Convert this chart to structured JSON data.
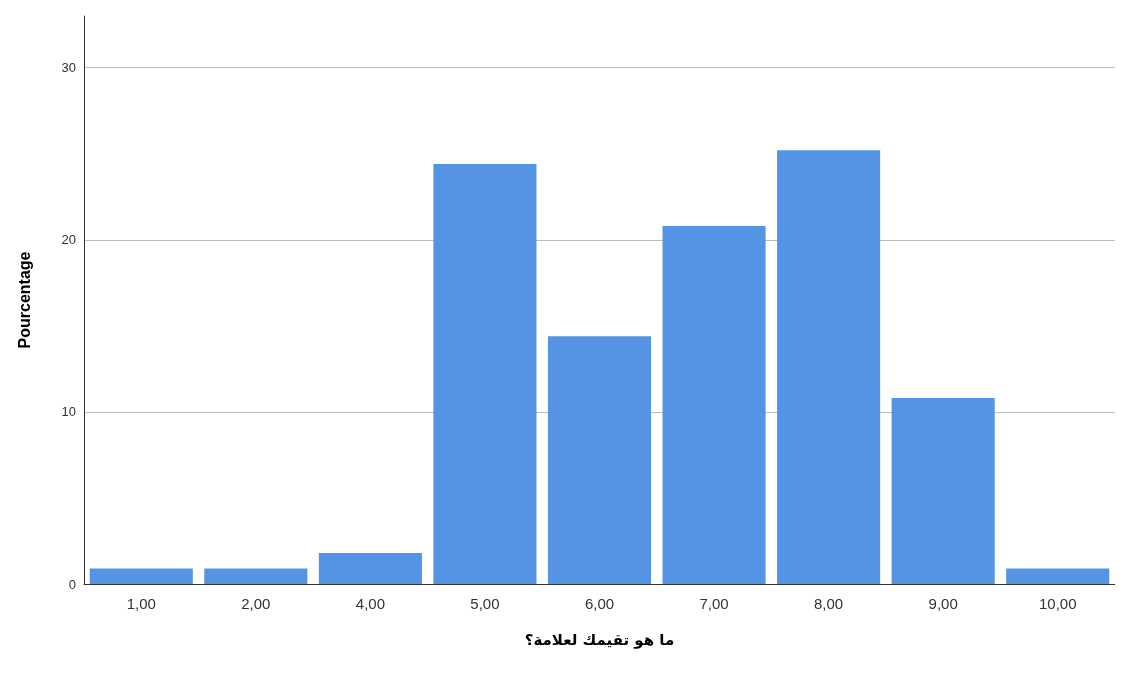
{
  "chart_data": {
    "type": "bar",
    "xlabel": "ما هو تقيمك لعلامة؟",
    "ylabel": "Pourcentage",
    "categories": [
      "1,00",
      "2,00",
      "4,00",
      "5,00",
      "6,00",
      "7,00",
      "8,00",
      "9,00",
      "10,00"
    ],
    "values": [
      0.9,
      0.9,
      1.8,
      24.4,
      14.4,
      20.8,
      25.2,
      10.8,
      0.9
    ],
    "color": "#5594e4",
    "ylim": [
      0,
      33
    ],
    "yticks": [
      0,
      10,
      20,
      30
    ],
    "grid": "y"
  }
}
